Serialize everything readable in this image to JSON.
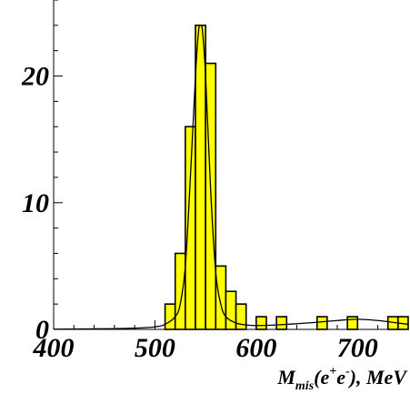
{
  "chart_data": {
    "type": "bar",
    "title": "",
    "xlabel": "M_mis(e+e-), MeV",
    "xlabel_parts": {
      "main": "M",
      "sub": "mis",
      "open": "(e",
      "sup1": "+",
      "mid": "e",
      "sup2": "-",
      "close": "), MeV"
    },
    "ylabel": "",
    "xlim": [
      400,
      750
    ],
    "ylim": [
      0,
      26
    ],
    "bin_width": 10,
    "x_ticks": [
      "400",
      "500",
      "600",
      "700"
    ],
    "x_tick_values": [
      400,
      500,
      600,
      700
    ],
    "y_ticks": [
      "0",
      "10",
      "20"
    ],
    "y_tick_values": [
      0,
      10,
      20
    ],
    "histogram": {
      "bin_edges_start": [
        510,
        520,
        530,
        540,
        550,
        560,
        570,
        580,
        600,
        620,
        660,
        690,
        730,
        740
      ],
      "counts": [
        2,
        6,
        16,
        24,
        21,
        5,
        3,
        2,
        1,
        1,
        1,
        1,
        1,
        1
      ],
      "fill": "#ffff00",
      "edge": "#000000"
    },
    "fit_curve": {
      "x": [
        400,
        450,
        480,
        500,
        510,
        520,
        525,
        530,
        535,
        540,
        543,
        545,
        547,
        550,
        555,
        560,
        565,
        570,
        580,
        590,
        600,
        620,
        650,
        680,
        700,
        720,
        740,
        750
      ],
      "y": [
        0.02,
        0.05,
        0.1,
        0.2,
        0.4,
        1.0,
        2.0,
        5.0,
        12.0,
        20.0,
        23.5,
        24.0,
        23.5,
        20.0,
        11.0,
        4.5,
        2.0,
        1.0,
        0.5,
        0.35,
        0.3,
        0.35,
        0.5,
        0.7,
        0.8,
        0.7,
        0.5,
        0.4
      ],
      "color": "#000000"
    },
    "grid": false,
    "legend": "none"
  }
}
